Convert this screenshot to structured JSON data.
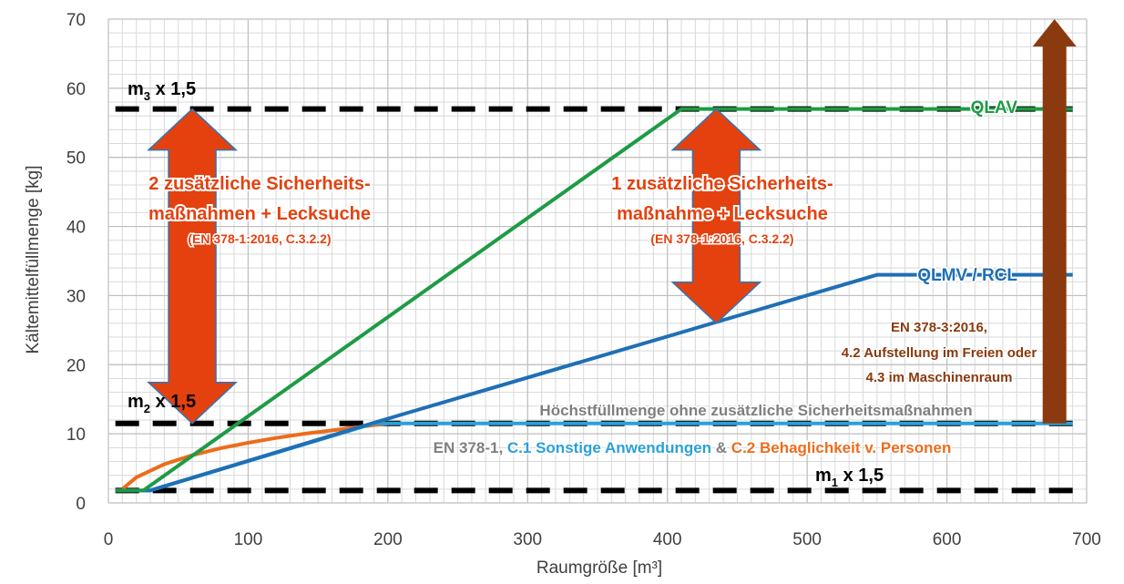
{
  "chart_data": {
    "type": "line",
    "xlabel": "Raumgröße [m³]",
    "ylabel": "Kältemittelfüllmenge [kg]",
    "xlim": [
      0,
      700
    ],
    "ylim": [
      0,
      70
    ],
    "xticks": [
      0,
      100,
      200,
      300,
      400,
      500,
      600,
      700
    ],
    "yticks": [
      0,
      10,
      20,
      30,
      40,
      50,
      60,
      70
    ],
    "grid": true,
    "colors": {
      "green": "#1e9b45",
      "blue": "#1f6fb5",
      "lightblue": "#2aa0d8",
      "orange": "#ed6c1c",
      "darkred": "#8a3a0e",
      "arrow_orange": "#e4410f",
      "arrow_outline": "#2e75b6",
      "gray_text": "#7f7f7f",
      "black_dash": "#000000"
    },
    "series": [
      {
        "name": "QLAV",
        "color": "#1e9b45",
        "x": [
          5,
          25,
          410,
          690
        ],
        "y": [
          1.8,
          1.8,
          57,
          57
        ]
      },
      {
        "name": "QLMV / RCL",
        "color": "#1f6fb5",
        "x": [
          5,
          30,
          190,
          550,
          690
        ],
        "y": [
          1.8,
          1.8,
          11.6,
          33,
          33
        ]
      },
      {
        "name": "",
        "color": "#2aa0d8",
        "x": [
          5,
          30,
          190,
          690
        ],
        "y": [
          1.8,
          1.8,
          11.5,
          11.5
        ]
      },
      {
        "name": "",
        "color": "#ed6c1c",
        "x": [
          10,
          20,
          40,
          60,
          80,
          100,
          120,
          140,
          160,
          180,
          200
        ],
        "y": [
          2.0,
          3.7,
          5.6,
          6.9,
          7.9,
          8.7,
          9.4,
          10.0,
          10.5,
          11.0,
          11.5
        ]
      }
    ],
    "dashed_lines": [
      {
        "id": "m3",
        "y": 57,
        "x": [
          5,
          690
        ]
      },
      {
        "id": "m2",
        "y": 11.5,
        "x": [
          5,
          690
        ]
      },
      {
        "id": "m1",
        "y": 1.8,
        "x": [
          5,
          690
        ]
      }
    ],
    "arrows": [
      {
        "id": "left",
        "type": "double",
        "x": 60,
        "y": [
          11.5,
          57
        ]
      },
      {
        "id": "mid",
        "type": "double",
        "x": 435,
        "y": [
          26,
          57
        ]
      },
      {
        "id": "right",
        "type": "up",
        "x": 677,
        "y": [
          11.5,
          70
        ]
      }
    ],
    "annotations": {
      "m3_label_main": "m",
      "m3_label_sub": "3",
      "m3_label_rest": " x 1,5",
      "m2_label_main": "m",
      "m2_label_sub": "2",
      "m2_label_rest": " x 1,5",
      "m1_label_main": "m",
      "m1_label_sub": "1",
      "m1_label_rest": " x 1,5",
      "qlav_label": "QLAV",
      "qlmv_label": "QLMV / RCL",
      "left_line1": "2 zusätzliche Sicherheits-",
      "left_line2": "maßnahmen + Lecksuche",
      "left_line3": "(EN 378-1:2016, C.3.2.2)",
      "mid_line1": "1 zusätzliche Sicherheits-",
      "mid_line2": "maßnahme + Lecksuche",
      "mid_line3": "(EN 378-1:2016, C.3.2.2)",
      "right_line1": "EN 378-3:2016,",
      "right_line2": "4.2 Aufstellung im Freien oder",
      "right_line3": "4.3 im Maschinenraum",
      "gray_label": "Höchstfüllmenge ohne zusätzliche Sicherheitsmaßnahmen",
      "bottom_part1": "EN 378-1, ",
      "bottom_part2": "C.1 Sonstige Anwendungen",
      "bottom_part3": " & ",
      "bottom_part4": "C.2 Behaglichkeit v. Personen"
    }
  }
}
